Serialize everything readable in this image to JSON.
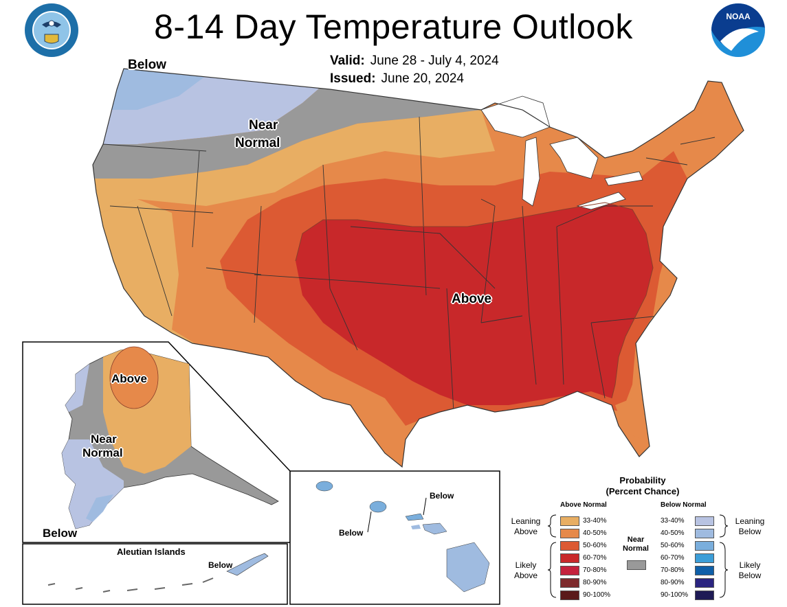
{
  "title": "8-14 Day Temperature Outlook",
  "valid_label": "Valid:",
  "valid_value": "June 28 - July 4, 2024",
  "issued_label": "Issued:",
  "issued_value": "June 20, 2024",
  "seal_text": "DEPARTMENT OF COMMERCE · UNITED STATES OF AMERICA",
  "noaa_text": "NOAA",
  "map_labels": {
    "conus_below": "Below",
    "conus_near": "Near",
    "conus_normal": "Normal",
    "conus_above": "Above",
    "ak_above": "Above",
    "ak_near": "Near",
    "ak_normal": "Normal",
    "ak_below": "Below",
    "aleutian_title": "Aleutian Islands",
    "aleutian_below": "Below",
    "hi_below_1": "Below",
    "hi_below_2": "Below"
  },
  "legend": {
    "title_1": "Probability",
    "title_2": "(Percent Chance)",
    "above_header": "Above Normal",
    "below_header": "Below Normal",
    "near_1": "Near",
    "near_2": "Normal",
    "leaning_above_1": "Leaning",
    "leaning_above_2": "Above",
    "likely_above_1": "Likely",
    "likely_above_2": "Above",
    "leaning_below_1": "Leaning",
    "leaning_below_2": "Below",
    "likely_below_1": "Likely",
    "likely_below_2": "Below",
    "above_bins": [
      {
        "label": "33-40%",
        "color": "#e8ae63"
      },
      {
        "label": "40-50%",
        "color": "#e6894a"
      },
      {
        "label": "50-60%",
        "color": "#dc5a33"
      },
      {
        "label": "60-70%",
        "color": "#c8282a"
      },
      {
        "label": "70-80%",
        "color": "#c4213c"
      },
      {
        "label": "80-90%",
        "color": "#7e2a2c"
      },
      {
        "label": "90-100%",
        "color": "#5a1a1a"
      }
    ],
    "below_bins": [
      {
        "label": "33-40%",
        "color": "#b8c3e2"
      },
      {
        "label": "40-50%",
        "color": "#9fbbe0"
      },
      {
        "label": "50-60%",
        "color": "#7aaedc"
      },
      {
        "label": "60-70%",
        "color": "#3c9ed8"
      },
      {
        "label": "70-80%",
        "color": "#0f5fa8"
      },
      {
        "label": "80-90%",
        "color": "#2a2480"
      },
      {
        "label": "90-100%",
        "color": "#1e1a55"
      }
    ],
    "near_color": "#999999"
  }
}
